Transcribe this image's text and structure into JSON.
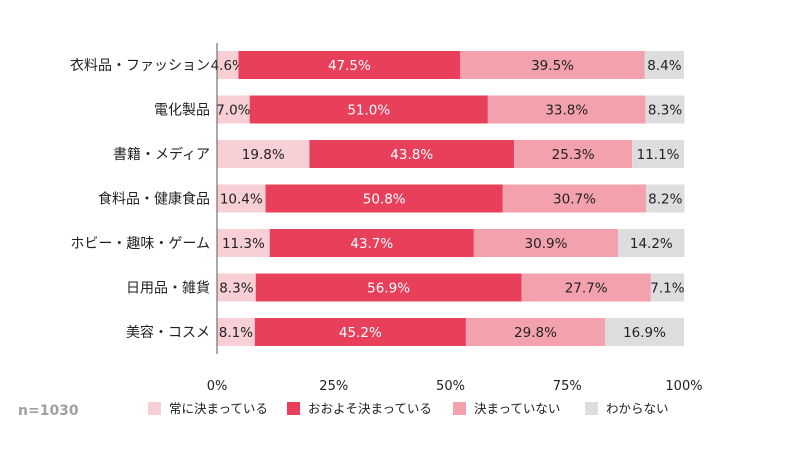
{
  "note": "n=1030",
  "chart_data": {
    "type": "bar",
    "orientation": "horizontal",
    "stacked": "percent",
    "title": "",
    "xlabel": "",
    "ylabel": "",
    "xlim": [
      0,
      100
    ],
    "x_ticks": [
      "0%",
      "25%",
      "50%",
      "75%",
      "100%"
    ],
    "legend_position": "bottom",
    "categories": [
      "衣料品・ファッション",
      "電化製品",
      "書籍・メディア",
      "食料品・健康食品",
      "ホビー・趣味・ゲーム",
      "日用品・雑貨",
      "美容・コスメ"
    ],
    "series": [
      {
        "name": "常に決まっている",
        "color": "#f7cfd4",
        "text_color": "#222222",
        "values": [
          4.6,
          7.0,
          19.8,
          10.4,
          11.3,
          8.3,
          8.1
        ],
        "labels": [
          "4.6%",
          "7.0%",
          "19.8%",
          "10.4%",
          "11.3%",
          "8.3%",
          "8.1%"
        ]
      },
      {
        "name": "おおよそ決まっている",
        "color": "#e8405a",
        "text_color": "#ffffff",
        "values": [
          47.5,
          51.0,
          43.8,
          50.8,
          43.7,
          56.9,
          45.2
        ],
        "labels": [
          "47.5%",
          "51.0%",
          "43.8%",
          "50.8%",
          "43.7%",
          "56.9%",
          "45.2%"
        ]
      },
      {
        "name": "決まっていない",
        "color": "#f3a2ad",
        "text_color": "#222222",
        "values": [
          39.5,
          33.8,
          25.3,
          30.7,
          30.9,
          27.7,
          29.8
        ],
        "labels": [
          "39.5%",
          "33.8%",
          "25.3%",
          "30.7%",
          "30.9%",
          "27.7%",
          "29.8%"
        ]
      },
      {
        "name": "わからない",
        "color": "#dddddd",
        "text_color": "#222222",
        "values": [
          8.4,
          8.3,
          11.1,
          8.2,
          14.2,
          7.1,
          16.9
        ],
        "labels": [
          "8.4%",
          "8.3%",
          "11.1%",
          "8.2%",
          "14.2%",
          "7.1%",
          "16.9%"
        ]
      }
    ]
  }
}
